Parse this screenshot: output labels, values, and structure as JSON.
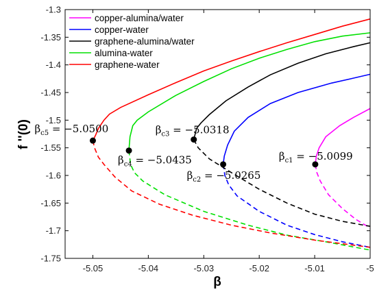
{
  "chart_data": {
    "type": "line",
    "xlabel": "β",
    "ylabel": "f ''(0)",
    "xlim": [
      -5.055,
      -5.0
    ],
    "ylim": [
      -1.75,
      -1.3
    ],
    "xticks": [
      "-5.05",
      "-5.04",
      "-5.03",
      "-5.02",
      "-5.01",
      "-5"
    ],
    "yticks": [
      "-1.3",
      "-1.35",
      "-1.4",
      "-1.45",
      "-1.5",
      "-1.55",
      "-1.6",
      "-1.65",
      "-1.7",
      "-1.75"
    ],
    "legend_position": "top-left",
    "notes": "Solid lines are first (upper) solution branches, dashed lines are second (lower) solution branches; black dots mark critical points.",
    "series": [
      {
        "name": "copper-alumina/water",
        "color": "#ff00ff",
        "upper": [
          [
            -5.0099,
            -1.58
          ],
          [
            -5.0097,
            -1.565
          ],
          [
            -5.0092,
            -1.55
          ],
          [
            -5.008,
            -1.53
          ],
          [
            -5.0055,
            -1.51
          ],
          [
            -5.003,
            -1.495
          ],
          [
            -5.0,
            -1.479
          ]
        ],
        "lower": [
          [
            -5.0099,
            -1.58
          ],
          [
            -5.0096,
            -1.595
          ],
          [
            -5.009,
            -1.61
          ],
          [
            -5.0075,
            -1.635
          ],
          [
            -5.005,
            -1.66
          ],
          [
            -5.0025,
            -1.68
          ],
          [
            -5.0,
            -1.695
          ]
        ]
      },
      {
        "name": "copper-water",
        "color": "#0000ff",
        "upper": [
          [
            -5.0265,
            -1.58
          ],
          [
            -5.0263,
            -1.565
          ],
          [
            -5.0257,
            -1.545
          ],
          [
            -5.0245,
            -1.52
          ],
          [
            -5.022,
            -1.495
          ],
          [
            -5.018,
            -1.47
          ],
          [
            -5.013,
            -1.45
          ],
          [
            -5.007,
            -1.433
          ],
          [
            -5.003,
            -1.424
          ],
          [
            -5.0,
            -1.417
          ]
        ],
        "lower": [
          [
            -5.0265,
            -1.58
          ],
          [
            -5.0262,
            -1.6
          ],
          [
            -5.0255,
            -1.617
          ],
          [
            -5.024,
            -1.637
          ],
          [
            -5.02,
            -1.665
          ],
          [
            -5.015,
            -1.69
          ],
          [
            -5.01,
            -1.707
          ],
          [
            -5.005,
            -1.72
          ],
          [
            -5.0,
            -1.73
          ]
        ]
      },
      {
        "name": "graphene-alumina/water",
        "color": "#000000",
        "upper": [
          [
            -5.0318,
            -1.535
          ],
          [
            -5.0313,
            -1.515
          ],
          [
            -5.0305,
            -1.505
          ],
          [
            -5.029,
            -1.49
          ],
          [
            -5.026,
            -1.465
          ],
          [
            -5.022,
            -1.44
          ],
          [
            -5.018,
            -1.418
          ],
          [
            -5.013,
            -1.397
          ],
          [
            -5.008,
            -1.38
          ],
          [
            -5.003,
            -1.367
          ],
          [
            -5.0,
            -1.36
          ]
        ],
        "lower": [
          [
            -5.0318,
            -1.535
          ],
          [
            -5.031,
            -1.55
          ],
          [
            -5.029,
            -1.57
          ],
          [
            -5.025,
            -1.595
          ],
          [
            -5.02,
            -1.625
          ],
          [
            -5.015,
            -1.65
          ],
          [
            -5.01,
            -1.67
          ],
          [
            -5.005,
            -1.683
          ],
          [
            -5.0,
            -1.692
          ]
        ]
      },
      {
        "name": "alumina-water",
        "color": "#00e000",
        "upper": [
          [
            -5.0435,
            -1.555
          ],
          [
            -5.0433,
            -1.53
          ],
          [
            -5.0428,
            -1.51
          ],
          [
            -5.042,
            -1.5
          ],
          [
            -5.04,
            -1.485
          ],
          [
            -5.035,
            -1.455
          ],
          [
            -5.03,
            -1.43
          ],
          [
            -5.025,
            -1.407
          ],
          [
            -5.02,
            -1.388
          ],
          [
            -5.015,
            -1.372
          ],
          [
            -5.01,
            -1.358
          ],
          [
            -5.005,
            -1.348
          ],
          [
            -5.0,
            -1.342
          ]
        ],
        "lower": [
          [
            -5.0435,
            -1.555
          ],
          [
            -5.0432,
            -1.58
          ],
          [
            -5.0425,
            -1.595
          ],
          [
            -5.041,
            -1.61
          ],
          [
            -5.037,
            -1.635
          ],
          [
            -5.03,
            -1.665
          ],
          [
            -5.022,
            -1.69
          ],
          [
            -5.015,
            -1.708
          ],
          [
            -5.008,
            -1.72
          ],
          [
            -5.0,
            -1.735
          ]
        ]
      },
      {
        "name": "graphene-water",
        "color": "#ff0000",
        "upper": [
          [
            -5.05,
            -1.537
          ],
          [
            -5.0495,
            -1.527
          ],
          [
            -5.049,
            -1.515
          ],
          [
            -5.048,
            -1.5
          ],
          [
            -5.047,
            -1.489
          ],
          [
            -5.045,
            -1.477
          ],
          [
            -5.04,
            -1.454
          ],
          [
            -5.035,
            -1.432
          ],
          [
            -5.03,
            -1.411
          ],
          [
            -5.025,
            -1.393
          ],
          [
            -5.02,
            -1.376
          ],
          [
            -5.015,
            -1.36
          ],
          [
            -5.01,
            -1.345
          ],
          [
            -5.005,
            -1.33
          ],
          [
            -5.0,
            -1.317
          ]
        ],
        "lower": [
          [
            -5.05,
            -1.537
          ],
          [
            -5.0497,
            -1.55
          ],
          [
            -5.049,
            -1.567
          ],
          [
            -5.048,
            -1.58
          ],
          [
            -5.046,
            -1.603
          ],
          [
            -5.043,
            -1.628
          ],
          [
            -5.038,
            -1.652
          ],
          [
            -5.032,
            -1.672
          ],
          [
            -5.025,
            -1.69
          ],
          [
            -5.018,
            -1.704
          ],
          [
            -5.01,
            -1.717
          ],
          [
            -5.0,
            -1.73
          ]
        ]
      }
    ],
    "critical_points": [
      {
        "sub": "c5",
        "x": -5.05,
        "y": -1.537,
        "value": "−5.0500"
      },
      {
        "sub": "c4",
        "x": -5.0435,
        "y": -1.555,
        "value": "−5.0435"
      },
      {
        "sub": "c3",
        "x": -5.0318,
        "y": -1.535,
        "value": "−5.0318"
      },
      {
        "sub": "c2",
        "x": -5.0265,
        "y": -1.58,
        "value": "−5.0265"
      },
      {
        "sub": "c1",
        "x": -5.0099,
        "y": -1.58,
        "value": "−5.0099"
      }
    ]
  }
}
